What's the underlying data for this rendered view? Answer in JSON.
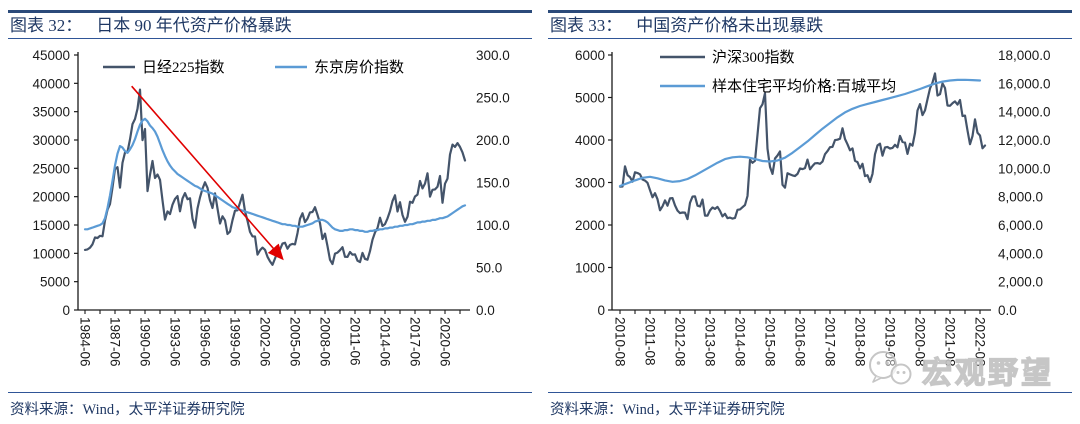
{
  "colors": {
    "series_dark": "#44546A",
    "series_blue": "#5B9BD5",
    "arrow_red": "#E00000",
    "title_navy": "#1F3864",
    "rule_dark_blue": "#2B4A7A",
    "rule_light_blue": "#2F5597",
    "axis_black": "#1A1A1A"
  },
  "panels": [
    {
      "label": "图表 32：",
      "title": "日本 90 年代资产价格暴跌",
      "source": "资料来源：Wind，太平洋证券研究院"
    },
    {
      "label": "图表 33：",
      "title": "中国资产价格未出现暴跌",
      "source": "资料来源：Wind，太平洋证券研究院"
    }
  ],
  "watermark": {
    "icon": "wechat-logo",
    "text": "宏观野望"
  },
  "chart_data": [
    {
      "type": "line",
      "title": "日本 90 年代资产价格暴跌",
      "legend_position": "top-inside-row",
      "grid": false,
      "x_ticks": [
        "1984-06",
        "1987-06",
        "1990-06",
        "1993-06",
        "1996-06",
        "1999-06",
        "2002-06",
        "2005-06",
        "2008-06",
        "2011-06",
        "2014-06",
        "2017-06",
        "2020-06"
      ],
      "x_tick_interval_months": 36,
      "left_axis": {
        "min": 0,
        "max": 45000,
        "ticks": [
          "0",
          "5000",
          "10000",
          "15000",
          "20000",
          "25000",
          "30000",
          "35000",
          "40000",
          "45000"
        ]
      },
      "right_axis": {
        "min": 0,
        "max": 300,
        "ticks": [
          "0.0",
          "50.0",
          "100.0",
          "150.0",
          "200.0",
          "250.0",
          "300.0"
        ]
      },
      "series": [
        {
          "name": "日经225指数",
          "axis": "left",
          "color": "#44546A",
          "start": "1984-06",
          "freq_months": 3,
          "values": [
            10600,
            10700,
            11000,
            11600,
            12800,
            12700,
            13100,
            13000,
            15800,
            17700,
            18700,
            21600,
            24900,
            25200,
            21600,
            26000,
            27800,
            27900,
            30100,
            32800,
            33700,
            35500,
            38900,
            29980,
            31940,
            20980,
            23850,
            26290,
            23290,
            23920,
            22980,
            19350,
            15950,
            17400,
            16920,
            18590,
            19590,
            20100,
            17420,
            19680,
            20630,
            19560,
            19720,
            16140,
            14520,
            17910,
            19870,
            21400,
            22530,
            21560,
            19360,
            18000,
            20600,
            17890,
            15260,
            16530,
            15830,
            13410,
            13840,
            15840,
            17530,
            17600,
            18930,
            20340,
            17410,
            15750,
            13790,
            12990,
            12970,
            9770,
            10540,
            11020,
            10620,
            9380,
            8580,
            7970,
            9080,
            10220,
            10680,
            11720,
            11860,
            10820,
            11490,
            11670,
            11580,
            13570,
            16110,
            17060,
            15510,
            16130,
            17230,
            17290,
            18140,
            16790,
            15310,
            12530,
            13480,
            11260,
            8860,
            8110,
            9960,
            10130,
            10550,
            11090,
            9380,
            9370,
            10230,
            9760,
            9820,
            8700,
            8460,
            10080,
            9010,
            8870,
            10400,
            12400,
            13680,
            14460,
            16290,
            14830,
            15160,
            16170,
            17450,
            19210,
            20240,
            17390,
            19030,
            16760,
            15580,
            16450,
            19110,
            18910,
            20030,
            20360,
            22760,
            21450,
            22300,
            24120,
            20010,
            21210,
            21280,
            21760,
            23650,
            18920,
            22290,
            23190,
            27440,
            29180,
            28790,
            29450,
            28790,
            27820,
            26390
          ]
        },
        {
          "name": "东京房价指数",
          "axis": "right",
          "color": "#5B9BD5",
          "start": "1984-06",
          "freq_months": 3,
          "values": [
            95,
            95,
            96,
            97,
            98,
            99,
            100,
            102,
            108,
            120,
            135,
            152,
            170,
            184,
            193,
            191,
            187,
            185,
            189,
            194,
            201,
            210,
            218,
            223,
            225,
            222,
            217,
            214,
            210,
            204,
            196,
            188,
            181,
            175,
            170,
            166,
            163,
            160,
            158,
            156,
            154,
            152,
            150,
            148,
            146,
            145,
            143,
            141,
            140,
            139,
            138,
            137,
            135,
            133,
            131,
            129,
            127,
            125,
            123,
            121,
            120,
            119,
            118,
            117,
            116,
            115,
            114,
            113,
            112,
            111,
            110,
            109,
            108,
            107,
            106,
            105,
            104,
            103,
            102,
            101,
            101,
            100,
            100,
            99,
            99,
            98,
            98,
            98,
            99,
            100,
            101,
            102,
            104,
            105,
            106,
            106,
            105,
            103,
            100,
            97,
            95,
            94,
            93,
            93,
            94,
            94,
            95,
            95,
            94,
            94,
            93,
            93,
            92,
            92,
            93,
            93,
            94,
            94,
            95,
            95,
            96,
            96,
            97,
            97,
            98,
            98,
            99,
            99,
            100,
            100,
            101,
            101,
            102,
            103,
            103,
            104,
            104,
            105,
            105,
            106,
            106,
            107,
            108,
            108,
            109,
            110,
            112,
            114,
            116,
            118,
            120,
            122,
            123
          ]
        }
      ],
      "annotation": {
        "type": "arrow",
        "color": "#E00000",
        "from": {
          "month": 56,
          "value": 39500
        },
        "to": {
          "month": 236,
          "value": 9200
        }
      }
    },
    {
      "type": "line",
      "title": "中国资产价格未出现暴跌",
      "legend_position": "top-inside-column",
      "grid": false,
      "x_ticks": [
        "2010-08",
        "2011-08",
        "2012-08",
        "2013-08",
        "2014-08",
        "2015-08",
        "2016-08",
        "2017-08",
        "2018-08",
        "2019-08",
        "2020-08",
        "2021-08",
        "2022-08"
      ],
      "x_tick_interval_months": 12,
      "left_axis": {
        "min": 0,
        "max": 6000,
        "ticks": [
          "0",
          "1000",
          "2000",
          "3000",
          "4000",
          "5000",
          "6000"
        ]
      },
      "right_axis": {
        "min": 0,
        "max": 18000,
        "ticks": [
          "0.0",
          "2,000.0",
          "4,000.0",
          "6,000.0",
          "8,000.0",
          "10,000.0",
          "12,000.0",
          "14,000.0",
          "16,000.0",
          "18,000.0"
        ]
      },
      "series": [
        {
          "name": "沪深300指数",
          "axis": "left",
          "color": "#44546A",
          "start": "2010-08",
          "freq_months": 1,
          "values": [
            2903,
            2905,
            3381,
            3173,
            3128,
            3018,
            3240,
            3223,
            3193,
            3070,
            3044,
            2994,
            2820,
            2651,
            2749,
            2608,
            2346,
            2441,
            2578,
            2454,
            2627,
            2632,
            2461,
            2338,
            2281,
            2294,
            2292,
            2139,
            2523,
            2669,
            2676,
            2455,
            2435,
            2601,
            2221,
            2222,
            2344,
            2412,
            2379,
            2426,
            2331,
            2203,
            2264,
            2159,
            2174,
            2150,
            2166,
            2357,
            2366,
            2420,
            2471,
            2683,
            3534,
            3463,
            3511,
            4124,
            4748,
            4840,
            5100,
            3796,
            3366,
            3203,
            3564,
            3636,
            3731,
            2946,
            2877,
            3218,
            3191,
            3168,
            3154,
            3203,
            3330,
            3316,
            3340,
            3538,
            3310,
            3388,
            3452,
            3456,
            3440,
            3492,
            3666,
            3738,
            3831,
            3837,
            3998,
            4006,
            4031,
            4276,
            4023,
            3898,
            3757,
            3802,
            3511,
            3479,
            3335,
            3439,
            3150,
            3172,
            3011,
            3202,
            3665,
            3872,
            3913,
            3630,
            3826,
            3835,
            3800,
            3815,
            3887,
            3829,
            4097,
            3955,
            3940,
            3674,
            3913,
            3867,
            4164,
            4695,
            4844,
            4587,
            4696,
            4961,
            5211,
            5352,
            5566,
            5048,
            5078,
            5331,
            5224,
            4811,
            4805,
            4866,
            4909,
            4832,
            4940,
            4564,
            4573,
            4223,
            3902,
            4091,
            4485,
            4170,
            4107,
            3805,
            3870
          ]
        },
        {
          "name": "样本住宅平均价格:百城平均",
          "axis": "right",
          "color": "#5B9BD5",
          "start": "2010-08",
          "freq_months": 3,
          "values": [
            8750,
            8950,
            9150,
            9330,
            9400,
            9300,
            9150,
            9050,
            9100,
            9250,
            9500,
            9800,
            10100,
            10400,
            10650,
            10780,
            10820,
            10780,
            10650,
            10520,
            10480,
            10550,
            10750,
            11100,
            11500,
            11900,
            12350,
            12800,
            13200,
            13600,
            13950,
            14200,
            14400,
            14550,
            14680,
            14820,
            14960,
            15100,
            15250,
            15420,
            15600,
            15800,
            15980,
            16120,
            16200,
            16240,
            16250,
            16230,
            16200
          ]
        }
      ]
    }
  ]
}
